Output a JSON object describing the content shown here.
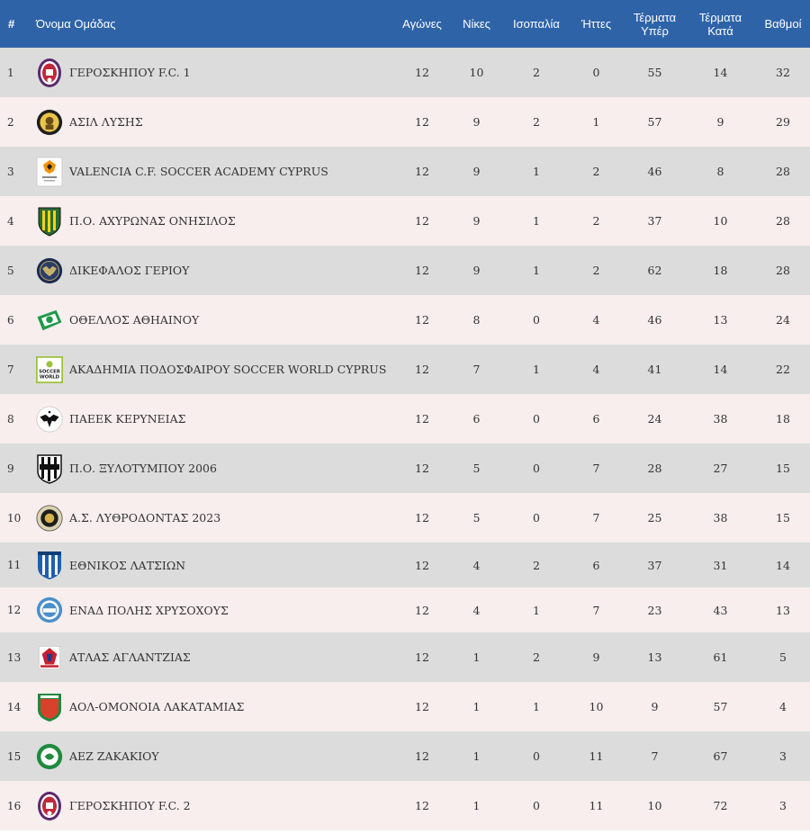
{
  "table": {
    "headers": {
      "rank": "#",
      "team": "Όνομα Ομάδας",
      "played": "Αγώνες",
      "wins": "Νίκες",
      "draws": "Ισοπαλία",
      "losses": "Ήττες",
      "goals_for": "Τέρματα Υπέρ",
      "goals_against": "Τέρματα Κατά",
      "points": "Βαθμοί"
    },
    "rows": [
      {
        "rank": "1",
        "team": "ΓΕΡΟΣΚΗΠΟΥ F.C. 1",
        "logo": "geroskipou-crest-icon",
        "played": "12",
        "wins": "10",
        "draws": "2",
        "losses": "0",
        "gf": "55",
        "ga": "14",
        "pts": "32"
      },
      {
        "rank": "2",
        "team": "ΑΣΙΛ ΛΥΣΗΣ",
        "logo": "asil-lysis-crest-icon",
        "played": "12",
        "wins": "9",
        "draws": "2",
        "losses": "1",
        "gf": "57",
        "ga": "9",
        "pts": "29"
      },
      {
        "rank": "3",
        "team": "VALENCIA C.F. SOCCER ACADEMY CYPRUS",
        "logo": "valencia-crest-icon",
        "played": "12",
        "wins": "9",
        "draws": "1",
        "losses": "2",
        "gf": "46",
        "ga": "8",
        "pts": "28"
      },
      {
        "rank": "4",
        "team": "Π.Ο. ΑΧΥΡΩΝΑΣ ΟΝΗΣΙΛΟΣ",
        "logo": "achyronas-crest-icon",
        "played": "12",
        "wins": "9",
        "draws": "1",
        "losses": "2",
        "gf": "37",
        "ga": "10",
        "pts": "28"
      },
      {
        "rank": "5",
        "team": "ΔΙΚΕΦΑΛΟΣ ΓΕΡΙΟΥ",
        "logo": "dikefalos-crest-icon",
        "played": "12",
        "wins": "9",
        "draws": "1",
        "losses": "2",
        "gf": "62",
        "ga": "18",
        "pts": "28"
      },
      {
        "rank": "6",
        "team": "ΟΘΕΛΛΟΣ ΑΘΗΑΙΝΟΥ",
        "logo": "othellos-crest-icon",
        "played": "12",
        "wins": "8",
        "draws": "0",
        "losses": "4",
        "gf": "46",
        "ga": "13",
        "pts": "24"
      },
      {
        "rank": "7",
        "team": "ΑΚΑΔΗΜΙΑ ΠΟΔΟΣΦΑΙΡΟΥ SOCCER WORLD CYPRUS",
        "logo": "soccer-world-crest-icon",
        "played": "12",
        "wins": "7",
        "draws": "1",
        "losses": "4",
        "gf": "41",
        "ga": "14",
        "pts": "22"
      },
      {
        "rank": "8",
        "team": "ΠΑΕΕΚ ΚΕΡΥΝΕΙΑΣ",
        "logo": "paeek-crest-icon",
        "played": "12",
        "wins": "6",
        "draws": "0",
        "losses": "6",
        "gf": "24",
        "ga": "38",
        "pts": "18"
      },
      {
        "rank": "9",
        "team": "Π.Ο. ΞΥΛΟΤΥΜΠΟΥ 2006",
        "logo": "xylotymbou-crest-icon",
        "played": "12",
        "wins": "5",
        "draws": "0",
        "losses": "7",
        "gf": "28",
        "ga": "27",
        "pts": "15"
      },
      {
        "rank": "10",
        "team": "Α.Σ. ΛΥΘΡΟΔΟΝΤΑΣ 2023",
        "logo": "lythrodontas-crest-icon",
        "played": "12",
        "wins": "5",
        "draws": "0",
        "losses": "7",
        "gf": "25",
        "ga": "38",
        "pts": "15"
      },
      {
        "rank": "11",
        "team": "ΕΘΝΙΚΟΣ ΛΑΤΣΙΩΝ",
        "logo": "ethnikos-crest-icon",
        "played": "12",
        "wins": "4",
        "draws": "2",
        "losses": "6",
        "gf": "37",
        "ga": "31",
        "pts": "14"
      },
      {
        "rank": "12",
        "team": "ΕΝΑΔ ΠΟΛΗΣ ΧΡΥΣΟΧΟΥΣ",
        "logo": "enad-crest-icon",
        "played": "12",
        "wins": "4",
        "draws": "1",
        "losses": "7",
        "gf": "23",
        "ga": "43",
        "pts": "13"
      },
      {
        "rank": "13",
        "team": "ΑΤΛΑΣ ΑΓΛΑΝΤΖΙΑΣ",
        "logo": "atlas-crest-icon",
        "played": "12",
        "wins": "1",
        "draws": "2",
        "losses": "9",
        "gf": "13",
        "ga": "61",
        "pts": "5"
      },
      {
        "rank": "14",
        "team": "ΑΟΛ-ΟΜΟΝΟΙΑ ΛΑΚΑΤΑΜΙΑΣ",
        "logo": "omonoia-lakatamias-crest-icon",
        "played": "12",
        "wins": "1",
        "draws": "1",
        "losses": "10",
        "gf": "9",
        "ga": "57",
        "pts": "4"
      },
      {
        "rank": "15",
        "team": "ΑΕΖ ΖΑΚΑΚΙΟΥ",
        "logo": "aez-crest-icon",
        "played": "12",
        "wins": "1",
        "draws": "0",
        "losses": "11",
        "gf": "7",
        "ga": "67",
        "pts": "3"
      },
      {
        "rank": "16",
        "team": "ΓΕΡΟΣΚΗΠΟΥ F.C. 2",
        "logo": "geroskipou-crest-icon",
        "played": "12",
        "wins": "1",
        "draws": "0",
        "losses": "11",
        "gf": "10",
        "ga": "72",
        "pts": "3"
      }
    ]
  },
  "colors": {
    "header_bg": "#2e63a8",
    "row_odd": "#dcdcdc",
    "row_even": "#f8eeee",
    "text": "#333333"
  }
}
